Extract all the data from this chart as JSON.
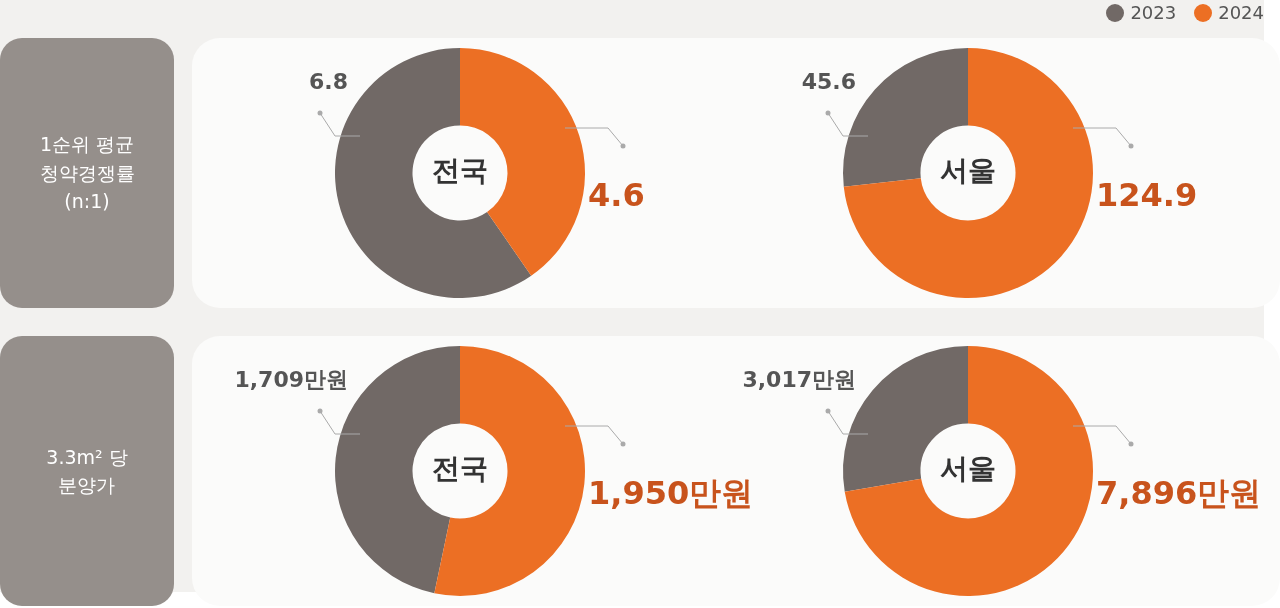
{
  "chart_data": [
    {
      "type": "donut",
      "subtitle": "1순위 평균\n청약경쟁률\n(n:1)",
      "title": "전국",
      "categories": [
        "2023",
        "2024"
      ],
      "values": [
        6.8,
        4.6
      ],
      "colors": [
        "#716966",
        "#ec6f24"
      ],
      "data_labels": true,
      "legend": "top right"
    },
    {
      "type": "donut",
      "title": "서울",
      "categories": [
        null,
        null
      ],
      "values": [
        45.6,
        124.9
      ],
      "colors": [
        "#716966",
        "#ec6f24"
      ],
      "data_labels": true
    },
    {
      "type": "donut",
      "subtitle": "3.3m² 당\n분양가",
      "title": "전국",
      "categories": [
        null,
        null
      ],
      "values": [
        1709,
        1950
      ],
      "value_labels": [
        "1,709만원",
        "1,950만원"
      ],
      "colors": [
        "#716966",
        "#ec6f24"
      ]
    },
    {
      "type": "donut",
      "title": "서울",
      "categories": [
        null,
        null
      ],
      "values": [
        3017,
        7896
      ],
      "value_labels": [
        "3,017만원",
        "7,896만원"
      ],
      "colors": [
        "#716966",
        "#ec6f24"
      ]
    }
  ]
}
